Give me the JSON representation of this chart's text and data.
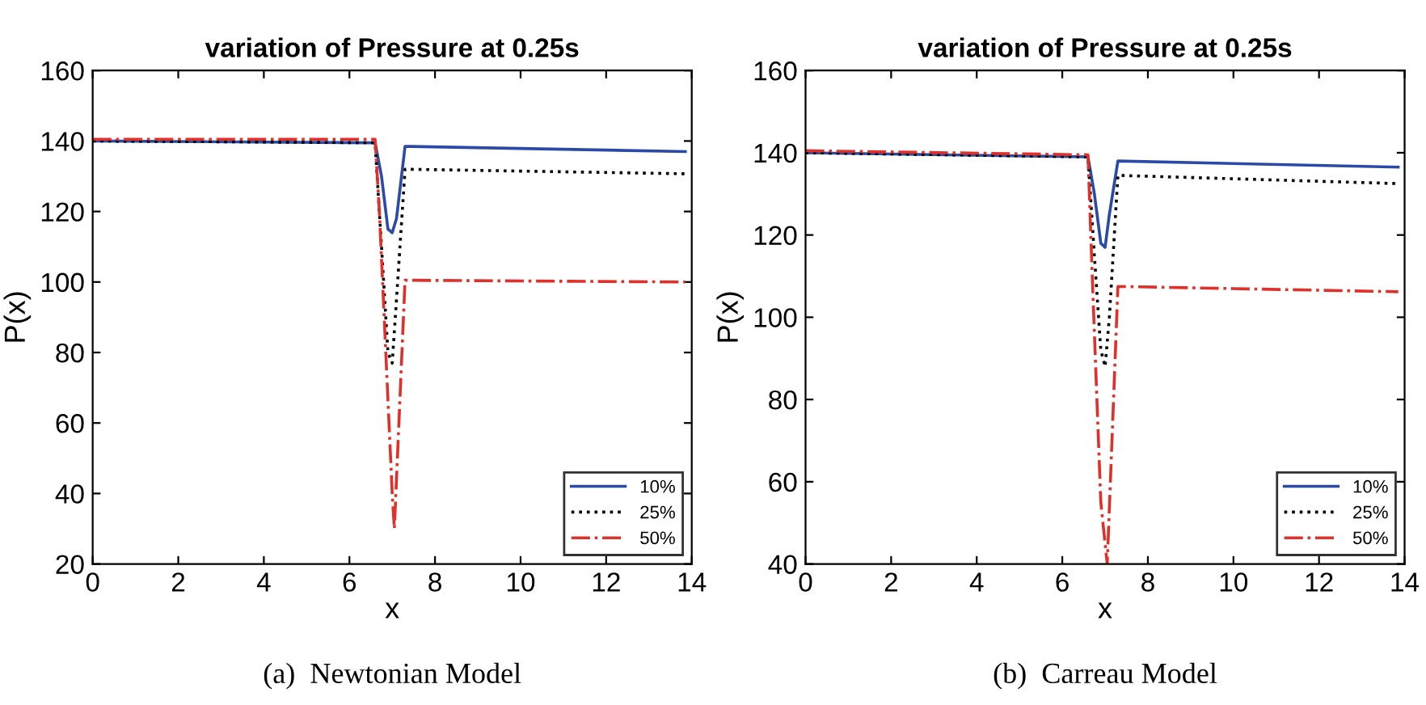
{
  "chart_data": [
    {
      "type": "line",
      "title": "variation of Pressure at 0.25s",
      "xlabel": "x",
      "ylabel": "P(x)",
      "xlim": [
        0,
        14
      ],
      "ylim": [
        20,
        160
      ],
      "xticks": [
        0,
        2,
        4,
        6,
        8,
        10,
        12,
        14
      ],
      "yticks": [
        20,
        40,
        60,
        80,
        100,
        120,
        140,
        160
      ],
      "grid": false,
      "legend": "bottom right",
      "annotations": [
        "(a)  Newtonian Model"
      ],
      "series": [
        {
          "name": "10%",
          "color": "#2b4aa8",
          "line_style": "solid",
          "x": [
            0,
            6.6,
            6.75,
            6.9,
            7.0,
            7.1,
            7.3,
            13.85
          ],
          "values": [
            140,
            139.5,
            130,
            115,
            114,
            118,
            138.5,
            137
          ]
        },
        {
          "name": "25%",
          "color": "#000000",
          "line_style": "dotted",
          "x": [
            0,
            6.6,
            6.75,
            6.9,
            7.0,
            7.1,
            7.3,
            13.85
          ],
          "values": [
            140,
            139.5,
            110,
            80,
            77,
            95,
            132,
            130.7
          ]
        },
        {
          "name": "50%",
          "color": "#e0302a",
          "line_style": "dashdot",
          "x": [
            0,
            6.6,
            6.7,
            7.0,
            7.05,
            7.3,
            13.85
          ],
          "values": [
            140.5,
            140.5,
            120,
            40,
            30,
            100.5,
            100
          ]
        }
      ]
    },
    {
      "type": "line",
      "title": "variation of Pressure at 0.25s",
      "xlabel": "x",
      "ylabel": "P(x)",
      "xlim": [
        0,
        14
      ],
      "ylim": [
        40,
        160
      ],
      "xticks": [
        0,
        2,
        4,
        6,
        8,
        10,
        12,
        14
      ],
      "yticks": [
        40,
        60,
        80,
        100,
        120,
        140,
        160
      ],
      "grid": false,
      "legend": "bottom right",
      "annotations": [
        "(b)  Carreau Model"
      ],
      "series": [
        {
          "name": "10%",
          "color": "#2b4aa8",
          "line_style": "solid",
          "x": [
            0,
            6.6,
            6.75,
            6.9,
            7.0,
            7.1,
            7.3,
            13.85
          ],
          "values": [
            140,
            139,
            130,
            118,
            117,
            125,
            138,
            136.5
          ]
        },
        {
          "name": "25%",
          "color": "#000000",
          "line_style": "dotted",
          "x": [
            0,
            6.6,
            6.75,
            6.9,
            7.0,
            7.1,
            7.3,
            13.85
          ],
          "values": [
            140,
            139,
            115,
            92,
            88,
            100,
            134.5,
            132.5
          ]
        },
        {
          "name": "50%",
          "color": "#e0302a",
          "line_style": "dashdot",
          "x": [
            0,
            6.6,
            6.7,
            6.9,
            7.05,
            7.3,
            13.85
          ],
          "values": [
            140.5,
            139.5,
            110,
            55,
            40,
            107.5,
            106.2
          ]
        }
      ]
    }
  ]
}
